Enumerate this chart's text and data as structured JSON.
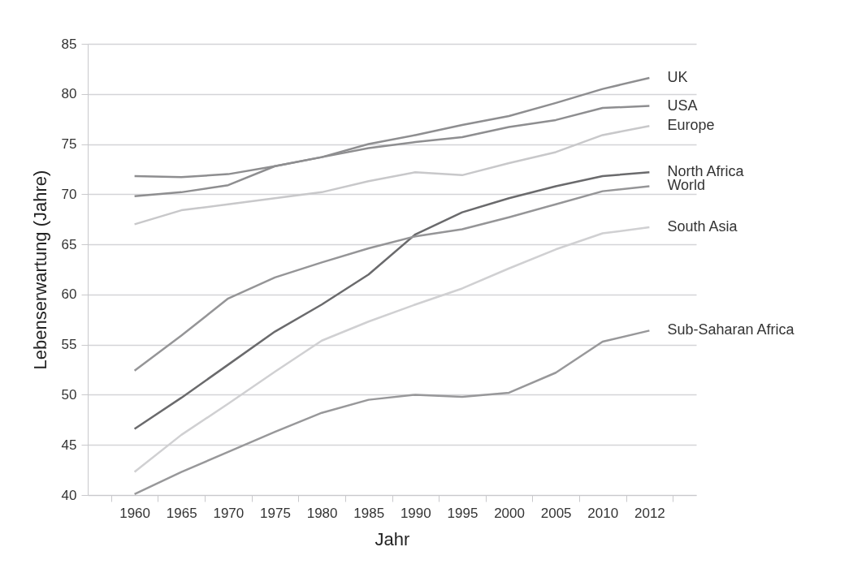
{
  "chart_data": {
    "type": "line",
    "xlabel": "Jahr",
    "ylabel": "Lebenserwartung (Jahre)",
    "categories": [
      "1960",
      "1965",
      "1970",
      "1975",
      "1980",
      "1985",
      "1990",
      "1995",
      "2000",
      "2005",
      "2010",
      "2012"
    ],
    "series": [
      {
        "name": "UK",
        "color": "#8e8e90",
        "values": [
          69.8,
          70.2,
          70.9,
          72.8,
          73.7,
          75.0,
          75.9,
          76.9,
          77.8,
          79.1,
          80.5,
          81.6
        ]
      },
      {
        "name": "USA",
        "color": "#8e8e90",
        "values": [
          71.8,
          71.7,
          72.0,
          72.8,
          73.7,
          74.6,
          75.2,
          75.7,
          76.7,
          77.4,
          78.6,
          78.8
        ]
      },
      {
        "name": "Europe",
        "color": "#c8c8ca",
        "values": [
          67.0,
          68.4,
          69.0,
          69.6,
          70.2,
          71.3,
          72.2,
          71.9,
          73.1,
          74.2,
          75.9,
          76.8
        ]
      },
      {
        "name": "North Africa",
        "color": "#6a6a6c",
        "values": [
          46.6,
          49.7,
          53.0,
          56.3,
          59.0,
          62.0,
          66.0,
          68.2,
          69.6,
          70.8,
          71.8,
          72.2
        ]
      },
      {
        "name": "World",
        "color": "#959597",
        "values": [
          52.4,
          55.9,
          59.6,
          61.7,
          63.2,
          64.6,
          65.8,
          66.5,
          67.7,
          69.0,
          70.3,
          70.8
        ]
      },
      {
        "name": "South Asia",
        "color": "#d0d0d2",
        "values": [
          42.3,
          46.0,
          49.1,
          52.3,
          55.4,
          57.3,
          59.0,
          60.6,
          62.6,
          64.5,
          66.1,
          66.7
        ]
      },
      {
        "name": "Sub-Saharan Africa",
        "color": "#98989a",
        "values": [
          40.1,
          42.3,
          44.3,
          46.3,
          48.2,
          49.5,
          50.0,
          49.8,
          50.2,
          52.2,
          55.3,
          56.4
        ]
      }
    ],
    "ylim": [
      40,
      85
    ],
    "yticks": [
      40,
      45,
      50,
      55,
      60,
      65,
      70,
      75,
      80,
      85
    ],
    "grid": "y",
    "legend": false,
    "marker": "none",
    "line_style": "solid"
  }
}
